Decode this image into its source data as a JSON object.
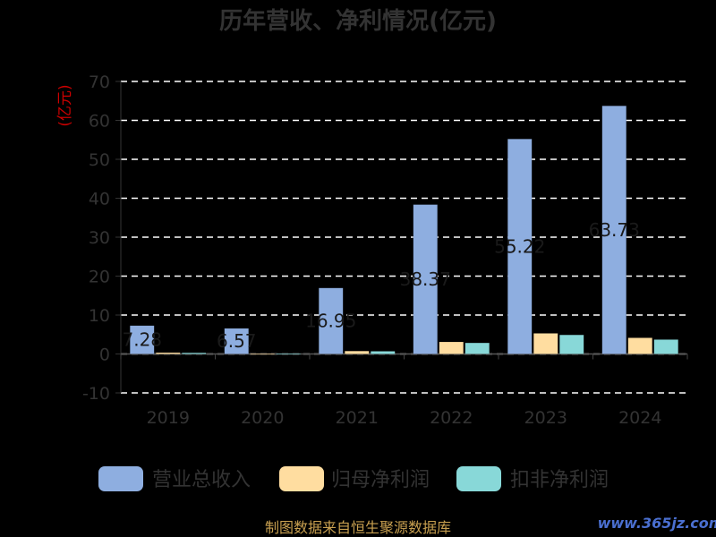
{
  "chart_data": {
    "type": "bar",
    "title": "历年营收、净利情况(亿元)",
    "ylabel": "(亿元)",
    "ylim": [
      -10,
      70
    ],
    "yticks": [
      -10,
      0,
      10,
      20,
      30,
      40,
      50,
      60,
      70
    ],
    "grid": true,
    "legend_position": "bottom",
    "categories": [
      "2019",
      "2020",
      "2021",
      "2022",
      "2023",
      "2024"
    ],
    "series": [
      {
        "name": "营业总收入",
        "color": "#8eaee0",
        "values": [
          7.28,
          6.57,
          16.95,
          38.37,
          55.22,
          63.73
        ],
        "labels": [
          "7.28",
          "6.57",
          "16.95",
          "38.37",
          "55.22",
          "63.73"
        ]
      },
      {
        "name": "归母净利润",
        "color": "#ffdda0",
        "values": [
          0.35,
          0.05,
          0.75,
          3.1,
          5.3,
          4.15
        ]
      },
      {
        "name": "扣非净利润",
        "color": "#88d8d8",
        "values": [
          0.3,
          0.1,
          0.7,
          2.85,
          4.9,
          3.7
        ]
      }
    ]
  },
  "footer": {
    "source": "制图数据来自恒生聚源数据库",
    "watermark": "www.365jz.com"
  }
}
